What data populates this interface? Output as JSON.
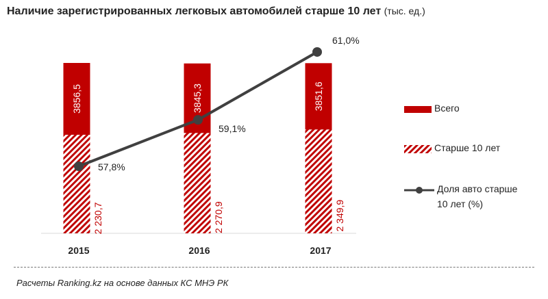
{
  "chart_data": {
    "type": "bar",
    "title": "Наличие зарегистрированных легковых автомобилей старше 10 лет",
    "unit": "(тыс. ед.)",
    "categories": [
      "2015",
      "2016",
      "2017"
    ],
    "series": [
      {
        "name": "Всего",
        "values": [
          3856.5,
          3845.3,
          3851.6
        ],
        "labels": [
          "3856,5",
          "3845,3",
          "3851,6"
        ],
        "color": "#c00000"
      },
      {
        "name": "Старше 10 лет",
        "values": [
          2230.7,
          2270.9,
          2349.9
        ],
        "labels": [
          "2 230,7",
          "2 270,9",
          "2 349,9"
        ],
        "color": "#c00000",
        "pattern": "hatched"
      },
      {
        "name": "Доля авто старше 10 лет (%)",
        "type": "line",
        "axis": "secondary",
        "values": [
          57.8,
          59.1,
          61.0
        ],
        "labels": [
          "57,8%",
          "59,1%",
          "61,0%"
        ],
        "color": "#404040"
      }
    ],
    "legend": {
      "position": "right",
      "entries": [
        "Всего",
        "Старше 10 лет",
        "Доля авто старше",
        "10 лет (%)"
      ]
    }
  },
  "source": "Расчеты Ranking.kz на основе данных КС МНЭ РК"
}
